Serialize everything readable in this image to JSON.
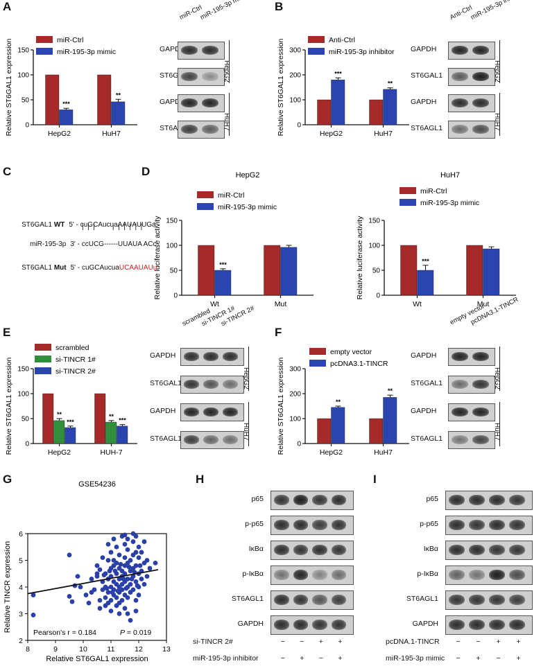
{
  "colors": {
    "red": "#a52a2a",
    "blue": "#2a44b0",
    "green": "#2f8f3a"
  },
  "labels": {
    "A": "A",
    "B": "B",
    "C": "C",
    "D": "D",
    "E": "E",
    "F": "F",
    "G": "G",
    "H": "H",
    "I": "I"
  },
  "blots": {
    "A": {
      "lanes": [
        "miR-Ctrl",
        "miR-195-3p mimic"
      ],
      "rows": [
        "GAPDH",
        "ST6GAL1",
        "GAPDH",
        "ST6AGL1"
      ],
      "cells": [
        "HepG2",
        "HuH7"
      ]
    },
    "B": {
      "lanes": [
        "Anti-Ctrl",
        "miR-195-3p inhibitor"
      ],
      "rows": [
        "GAPDH",
        "ST6GAL1",
        "GAPDH",
        "ST6AGL1"
      ],
      "cells": [
        "HepG2",
        "HuH7"
      ]
    },
    "E": {
      "lanes": [
        "scrambled",
        "si-TINCR 1#",
        "si-TINCR 2#"
      ],
      "rows": [
        "GAPDH",
        "ST6GAL1",
        "GAPDH",
        "ST6AGL1"
      ],
      "cells": [
        "HepG2",
        "HuH7"
      ]
    },
    "F": {
      "lanes": [
        "empty vector",
        "pcDNA3.1-TINCR"
      ],
      "rows": [
        "GAPDH",
        "ST6GAL1",
        "GAPDH",
        "ST6AGL1"
      ],
      "cells": [
        "HepG2",
        "HuH7"
      ]
    },
    "H": {
      "rows": [
        "p65",
        "p-p65",
        "IκBα",
        "p-IκBα",
        "ST6AGL1",
        "GAPDH"
      ],
      "treat1": "si-TINCR 2#",
      "treat1_signs": [
        "−",
        "−",
        "+",
        "+"
      ],
      "treat2": "miR-195-3p inhibitor",
      "treat2_signs": [
        "−",
        "+",
        "−",
        "+"
      ]
    },
    "I": {
      "rows": [
        "p65",
        "p-p65",
        "IκBα",
        "p-IκBα",
        "ST6AGL1",
        "GAPDH"
      ],
      "treat1": "pcDNA.1-TINCR",
      "treat1_signs": [
        "−",
        "−",
        "+",
        "+"
      ],
      "treat2": "miR-195-3p mimic",
      "treat2_signs": [
        "−",
        "+",
        "−",
        "+"
      ]
    }
  },
  "seq": {
    "wt_name": "ST6GAL1 ",
    "wt_bold": "WT",
    "wt_seq": "5' - cuGCAucuaAAUAUUGa",
    "pairs": "|  |  |         |  |  |  |  |  |",
    "mir_name": "miR-195-3p",
    "mir_seq": "3' - ccUCG------UUAUA ACc",
    "mut_name": "ST6GAL1 ",
    "mut_bold": "Mut",
    "mut_seq_black": "5' - cuGCAucua",
    "mut_seq_red": "UCAAUAUu"
  },
  "chart_data": [
    {
      "id": "A",
      "type": "bar",
      "categories": [
        "HepG2",
        "HuH7"
      ],
      "series": [
        {
          "name": "miR-Ctrl",
          "values": [
            100,
            100
          ],
          "err": [
            0,
            0
          ]
        },
        {
          "name": "miR-195-3p mimic",
          "values": [
            30,
            46
          ],
          "err": [
            3,
            5
          ]
        }
      ],
      "sig": [
        "***",
        "**"
      ],
      "ylabel": "Relative ST6GAL1 expression",
      "ylim": [
        0,
        150
      ],
      "yticks": [
        0,
        50,
        100,
        150
      ],
      "legend": "top-left"
    },
    {
      "id": "B",
      "type": "bar",
      "categories": [
        "HepG2",
        "HuH7"
      ],
      "series": [
        {
          "name": "Anti-Ctrl",
          "values": [
            100,
            100
          ],
          "err": [
            0,
            0
          ]
        },
        {
          "name": "miR-195-3p inhibitor",
          "values": [
            180,
            142
          ],
          "err": [
            8,
            6
          ]
        }
      ],
      "sig": [
        "***",
        "**"
      ],
      "ylabel": "Relative ST6GAL1 expression",
      "ylim": [
        0,
        300
      ],
      "yticks": [
        0,
        100,
        200,
        300
      ],
      "legend": "top-left"
    },
    {
      "id": "D1",
      "type": "bar",
      "title": "HepG2",
      "categories": [
        "Wt",
        "Mut"
      ],
      "series": [
        {
          "name": "miR-Ctrl",
          "values": [
            100,
            100
          ],
          "err": [
            0,
            0
          ]
        },
        {
          "name": "miR-195-3p mimic",
          "values": [
            50,
            96
          ],
          "err": [
            3,
            4
          ]
        }
      ],
      "sig": [
        "***",
        ""
      ],
      "ylabel": "Relative luciferase activity",
      "ylim": [
        0,
        150
      ],
      "yticks": [
        0,
        50,
        100,
        150
      ],
      "legend": "top-left"
    },
    {
      "id": "D2",
      "type": "bar",
      "title": "HuH7",
      "categories": [
        "Wt",
        "Mut"
      ],
      "series": [
        {
          "name": "miR-Ctrl",
          "values": [
            100,
            100
          ],
          "err": [
            0,
            0
          ]
        },
        {
          "name": "miR-195-3p mimic",
          "values": [
            50,
            93
          ],
          "err": [
            10,
            4
          ]
        }
      ],
      "sig": [
        "***",
        ""
      ],
      "ylabel": "Relative luciferase activity",
      "ylim": [
        0,
        150
      ],
      "yticks": [
        0,
        50,
        100,
        150
      ],
      "legend": "top-left"
    },
    {
      "id": "E",
      "type": "bar",
      "categories": [
        "HepG2",
        "HUH-7"
      ],
      "series": [
        {
          "name": "scrambled",
          "values": [
            100,
            100
          ],
          "err": [
            0,
            0
          ]
        },
        {
          "name": "si-TINCR 1#",
          "values": [
            46,
            43
          ],
          "err": [
            4,
            3
          ]
        },
        {
          "name": "si-TINCR 2#",
          "values": [
            32,
            35
          ],
          "err": [
            3,
            3
          ]
        }
      ],
      "sig_series": [
        [
          "**",
          "**"
        ],
        [
          "***",
          "***"
        ]
      ],
      "ylabel": "Relative ST6GAL1 expression",
      "ylim": [
        0,
        150
      ],
      "yticks": [
        0,
        50,
        100,
        150
      ],
      "legend": "top-left"
    },
    {
      "id": "F",
      "type": "bar",
      "categories": [
        "HepG2",
        "HuH7"
      ],
      "series": [
        {
          "name": "empty vector",
          "values": [
            100,
            100
          ],
          "err": [
            0,
            0
          ]
        },
        {
          "name": "pcDNA3.1-TINCR",
          "values": [
            145,
            185
          ],
          "err": [
            5,
            9
          ]
        }
      ],
      "sig": [
        "**",
        "**"
      ],
      "ylabel": "Relative ST6GAL1 expression",
      "ylim": [
        0,
        300
      ],
      "yticks": [
        0,
        100,
        200,
        300
      ],
      "legend": "top-left"
    },
    {
      "id": "G",
      "type": "scatter",
      "title": "GSE54236",
      "xlabel": "Relative ST6GAL1 expression",
      "ylabel": "Relative TINCR expression",
      "xlim": [
        8,
        13
      ],
      "ylim": [
        2,
        6
      ],
      "xticks": [
        8,
        9,
        10,
        11,
        12,
        13
      ],
      "yticks": [
        2,
        3,
        4,
        5,
        6
      ],
      "fit": {
        "x": [
          8,
          12.7
        ],
        "y": [
          3.75,
          4.65
        ]
      },
      "r_text": "Pearson's r = 0.184",
      "p_label": "P",
      "p_text": " = 0.019",
      "points": [
        [
          8.2,
          3.7
        ],
        [
          8.2,
          2.95
        ],
        [
          9.5,
          5.2
        ],
        [
          9.5,
          3.65
        ],
        [
          9.6,
          3.45
        ],
        [
          9.7,
          4.05
        ],
        [
          9.8,
          4.4
        ],
        [
          9.9,
          4.0
        ],
        [
          10.1,
          3.7
        ],
        [
          10.3,
          4.3
        ],
        [
          10.4,
          3.9
        ],
        [
          10.5,
          4.5
        ],
        [
          10.5,
          4.8
        ],
        [
          10.5,
          4.4
        ],
        [
          10.6,
          3.5
        ],
        [
          10.6,
          4.65
        ],
        [
          10.7,
          4.2
        ],
        [
          10.7,
          3.9
        ],
        [
          10.7,
          5.1
        ],
        [
          10.8,
          4.0
        ],
        [
          10.8,
          4.5
        ],
        [
          10.8,
          3.3
        ],
        [
          10.8,
          3.6
        ],
        [
          10.9,
          3.8
        ],
        [
          10.9,
          4.3
        ],
        [
          10.9,
          5.6
        ],
        [
          10.9,
          5.0
        ],
        [
          11.0,
          4.7
        ],
        [
          11.0,
          4.0
        ],
        [
          11.0,
          3.5
        ],
        [
          11.0,
          5.3
        ],
        [
          11.0,
          3.1
        ],
        [
          11.0,
          4.4
        ],
        [
          11.1,
          3.9
        ],
        [
          11.1,
          4.2
        ],
        [
          11.1,
          3.7
        ],
        [
          11.1,
          4.8
        ],
        [
          11.1,
          5.0
        ],
        [
          11.1,
          5.8
        ],
        [
          11.2,
          4.5
        ],
        [
          11.2,
          4.1
        ],
        [
          11.2,
          3.6
        ],
        [
          11.2,
          3.3
        ],
        [
          11.2,
          4.9
        ],
        [
          11.2,
          5.5
        ],
        [
          11.3,
          4.0
        ],
        [
          11.3,
          4.3
        ],
        [
          11.3,
          3.8
        ],
        [
          11.3,
          4.7
        ],
        [
          11.3,
          5.2
        ],
        [
          11.3,
          3.0
        ],
        [
          11.4,
          4.4
        ],
        [
          11.4,
          3.9
        ],
        [
          11.4,
          4.6
        ],
        [
          11.4,
          5.9
        ],
        [
          11.4,
          3.5
        ],
        [
          11.4,
          4.1
        ],
        [
          11.5,
          5.1
        ],
        [
          11.5,
          4.8
        ],
        [
          11.5,
          4.2
        ],
        [
          11.5,
          3.7
        ],
        [
          11.5,
          5.6
        ],
        [
          11.5,
          4.5
        ],
        [
          11.5,
          3.2
        ],
        [
          11.6,
          4.0
        ],
        [
          11.6,
          4.9
        ],
        [
          11.6,
          4.3
        ],
        [
          11.6,
          5.4
        ],
        [
          11.6,
          3.6
        ],
        [
          11.6,
          5.8
        ],
        [
          11.7,
          4.6
        ],
        [
          11.7,
          4.1
        ],
        [
          11.7,
          5.0
        ],
        [
          11.7,
          3.8
        ],
        [
          11.7,
          2.75
        ],
        [
          11.8,
          4.4
        ],
        [
          11.8,
          5.2
        ],
        [
          11.8,
          4.7
        ],
        [
          11.8,
          3.9
        ],
        [
          11.8,
          5.7
        ],
        [
          11.9,
          4.2
        ],
        [
          11.9,
          5.3
        ],
        [
          11.9,
          4.8
        ],
        [
          11.9,
          3.5
        ],
        [
          11.9,
          5.9
        ],
        [
          12.0,
          4.5
        ],
        [
          12.0,
          5.5
        ],
        [
          12.0,
          4.0
        ],
        [
          12.0,
          3.7
        ],
        [
          12.0,
          5.1
        ],
        [
          12.1,
          4.6
        ],
        [
          12.1,
          5.3
        ],
        [
          12.1,
          4.3
        ],
        [
          12.2,
          4.9
        ],
        [
          12.2,
          5.7
        ],
        [
          12.2,
          4.1
        ],
        [
          12.3,
          4.4
        ],
        [
          12.3,
          5.0
        ],
        [
          12.4,
          4.7
        ],
        [
          12.6,
          4.9
        ],
        [
          10.6,
          3.2
        ],
        [
          10.9,
          3.4
        ],
        [
          11.3,
          3.4
        ],
        [
          11.6,
          3.0
        ],
        [
          11.9,
          3.1
        ],
        [
          10.3,
          3.8
        ],
        [
          10.2,
          3.4
        ],
        [
          11.8,
          6.0
        ],
        [
          11.5,
          5.95
        ],
        [
          11.05,
          3.8
        ],
        [
          10.95,
          4.6
        ],
        [
          11.45,
          4.3
        ],
        [
          11.75,
          4.3
        ],
        [
          11.15,
          4.6
        ],
        [
          11.35,
          4.85
        ],
        [
          11.55,
          3.95
        ],
        [
          11.65,
          4.75
        ],
        [
          11.85,
          4.55
        ],
        [
          12.05,
          4.8
        ],
        [
          10.75,
          4.45
        ],
        [
          10.85,
          3.95
        ],
        [
          11.25,
          3.85
        ],
        [
          11.95,
          4.05
        ]
      ]
    }
  ]
}
